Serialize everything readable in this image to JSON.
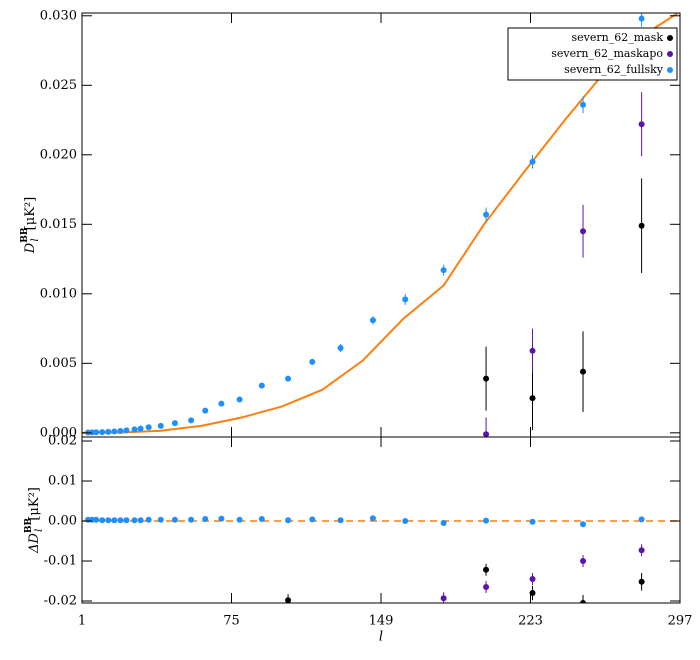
{
  "chart_data": [
    {
      "type": "scatter",
      "ylabel": "D",
      "ylabel_sub": "l",
      "ylabel_sup": "BB",
      "ylabel_unit": "[μK²]",
      "xlim": [
        1,
        297
      ],
      "xticks": [
        1,
        75,
        149,
        223,
        297
      ],
      "ylim": [
        -0.0003,
        0.0302
      ],
      "yticks": [
        {
          "value": 0,
          "label": "0.000"
        },
        {
          "value": 0.005,
          "label": "0.005"
        },
        {
          "value": 0.01,
          "label": "0.010"
        },
        {
          "value": 0.015,
          "label": "0.015"
        },
        {
          "value": 0.02,
          "label": "0.020"
        },
        {
          "value": 0.025,
          "label": "0.025"
        },
        {
          "value": 0.03,
          "label": "0.030"
        }
      ],
      "legend": "upper right",
      "series": [
        {
          "name": "severn_62_mask",
          "color": "#000000",
          "x": [
            201,
            224,
            249,
            278
          ],
          "values": [
            0.0039,
            0.0025,
            0.0044,
            0.0149
          ],
          "errors": [
            0.0023,
            0.0023,
            0.0029,
            0.0034
          ]
        },
        {
          "name": "severn_62_maskapo",
          "color": "#5a14aa",
          "x": [
            201,
            224,
            249,
            278
          ],
          "values": [
            -0.0001,
            0.0059,
            0.0145,
            0.0222
          ],
          "errors": [
            0.0012,
            0.0016,
            0.0019,
            0.0023
          ]
        },
        {
          "name": "severn_62_fullsky",
          "color": "#1e8fff",
          "x": [
            4,
            6,
            8,
            11,
            14,
            17,
            20,
            23,
            27,
            30,
            34,
            40,
            47,
            55,
            62,
            70,
            79,
            90,
            103,
            115,
            129,
            145,
            161,
            180,
            201,
            224,
            249,
            278
          ],
          "values": [
            2e-05,
            3e-05,
            4e-05,
            5e-05,
            7e-05,
            0.0001,
            0.00013,
            0.00018,
            0.00025,
            0.0003,
            0.0004,
            0.0005,
            0.0007,
            0.0009,
            0.0016,
            0.0021,
            0.0024,
            0.0034,
            0.0039,
            0.0051,
            0.0061,
            0.0081,
            0.0096,
            0.0117,
            0.0157,
            0.0195,
            0.0236,
            0.0298
          ],
          "errors": [
            2e-05,
            2e-05,
            2e-05,
            2e-05,
            2e-05,
            2e-05,
            2e-05,
            2e-05,
            2e-05,
            2e-05,
            5e-05,
            5e-05,
            5e-05,
            5e-05,
            0.0001,
            0.0001,
            0.00015,
            0.0002,
            0.0002,
            0.0002,
            0.0003,
            0.0003,
            0.0004,
            0.0004,
            0.0005,
            0.0005,
            0.0006,
            0.0006
          ]
        }
      ],
      "theory": {
        "color": "#ff7f0e",
        "x": [
          1,
          20,
          40,
          60,
          80,
          100,
          120,
          140,
          160,
          180,
          200,
          220,
          240,
          260,
          280,
          296
        ],
        "values": [
          0,
          2e-05,
          0.00015,
          0.0005,
          0.0011,
          0.0019,
          0.0031,
          0.0052,
          0.0082,
          0.0106,
          0.015,
          0.0188,
          0.0225,
          0.026,
          0.0287,
          0.0302
        ]
      }
    },
    {
      "type": "scatter",
      "ylabel": "ΔD",
      "ylabel_sub": "l",
      "ylabel_sup": "BB",
      "ylabel_unit": "[μK²]",
      "xlabel": "l",
      "xlim": [
        1,
        297
      ],
      "xticks": [
        1,
        75,
        149,
        223,
        297
      ],
      "ylim": [
        -0.0205,
        0.021
      ],
      "yticks": [
        {
          "value": -0.02,
          "label": "-0.02"
        },
        {
          "value": -0.01,
          "label": "-0.01"
        },
        {
          "value": 0,
          "label": "0.00"
        },
        {
          "value": 0.01,
          "label": "0.01"
        },
        {
          "value": 0.02,
          "label": "0.02"
        }
      ],
      "series": [
        {
          "color": "#000000",
          "x": [
            103,
            201,
            224,
            249,
            278
          ],
          "values": [
            -0.0198,
            -0.0122,
            -0.018,
            -0.0205,
            -0.0152
          ],
          "errors": [
            0.0015,
            0.0015,
            0.0018,
            0.002,
            0.0022
          ]
        },
        {
          "color": "#5a14aa",
          "x": [
            180,
            201,
            224,
            249,
            278
          ],
          "values": [
            -0.0193,
            -0.0165,
            -0.0145,
            -0.01,
            -0.0073
          ],
          "errors": [
            0.0015,
            0.0015,
            0.0015,
            0.0015,
            0.0015
          ]
        },
        {
          "color": "#1e8fff",
          "x": [
            4,
            6,
            8,
            11,
            14,
            17,
            20,
            23,
            27,
            30,
            34,
            40,
            47,
            55,
            62,
            70,
            79,
            90,
            103,
            115,
            129,
            145,
            161,
            180,
            201,
            224,
            249,
            278
          ],
          "values": [
            0.0003,
            0.0003,
            0.0003,
            0.0002,
            0.0002,
            0.0002,
            0.0002,
            0.0002,
            0.0002,
            0.0002,
            0.0003,
            0.0003,
            0.0003,
            0.0003,
            0.0005,
            0.0006,
            0.0003,
            0.0005,
            0.0002,
            0.0004,
            0.0002,
            0.0007,
            0,
            -0.0005,
            0.0001,
            -0.0002,
            -0.0008,
            0.0004
          ],
          "errors": [
            2e-05,
            2e-05,
            2e-05,
            2e-05,
            2e-05,
            2e-05,
            2e-05,
            2e-05,
            2e-05,
            2e-05,
            5e-05,
            5e-05,
            5e-05,
            5e-05,
            0.0001,
            0.0001,
            0.00015,
            0.0002,
            0.0002,
            0.0002,
            0.0003,
            0.0003,
            0.0004,
            0.0004,
            0.0005,
            0.0005,
            0.0006,
            0.0006
          ]
        }
      ]
    }
  ]
}
